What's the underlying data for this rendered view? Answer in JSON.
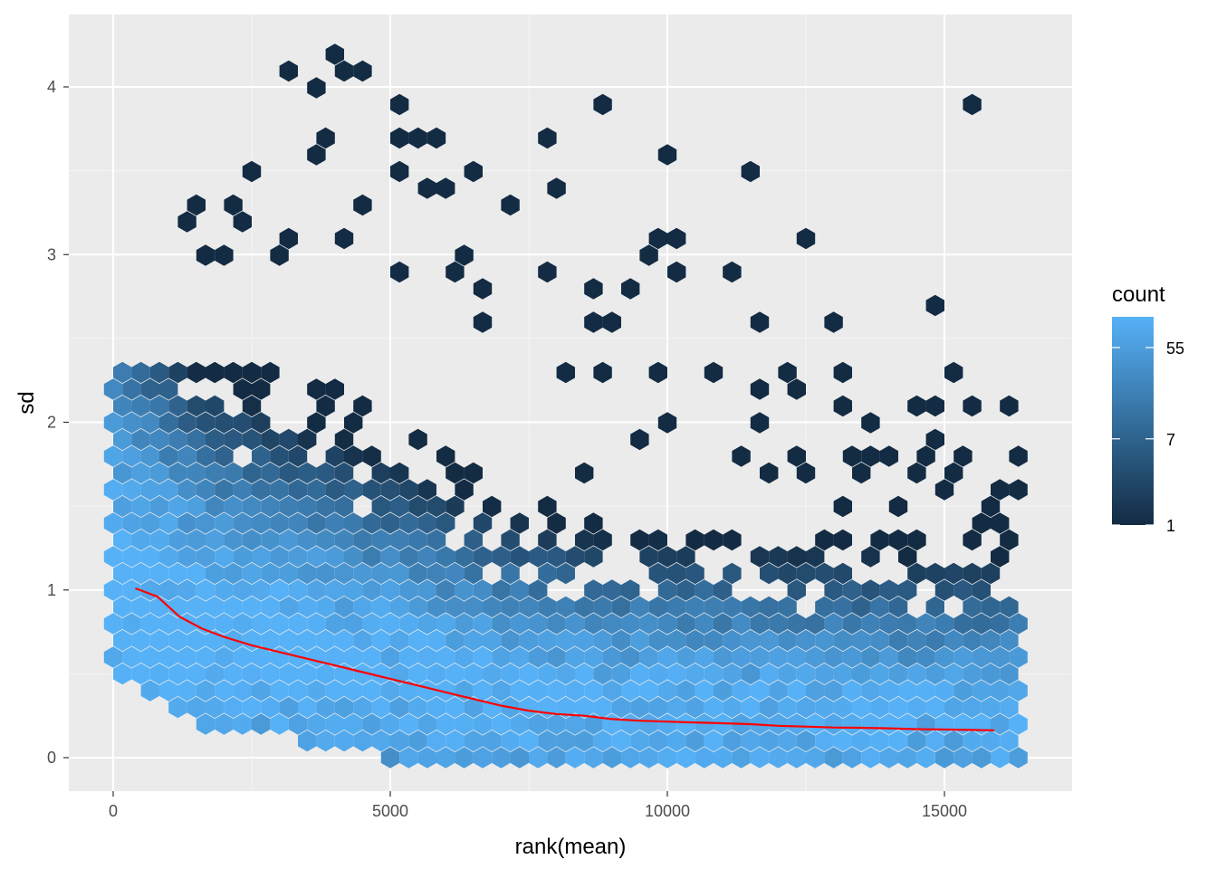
{
  "chart_data": {
    "type": "hexbin",
    "xlabel": "rank(mean)",
    "ylabel": "sd",
    "xlim": [
      -800,
      17400
    ],
    "ylim": [
      -0.2,
      4.4
    ],
    "x_ticks": [
      0,
      5000,
      10000,
      15000
    ],
    "x_tick_labels": [
      "0",
      "5000",
      "10000",
      "15000"
    ],
    "y_ticks": [
      0,
      1,
      2,
      3,
      4
    ],
    "y_tick_labels": [
      "0",
      "1",
      "2",
      "3",
      "4"
    ],
    "grid": true,
    "legend": {
      "title": "count",
      "position": "right",
      "scale": "log",
      "breaks": [
        1,
        7,
        55
      ],
      "labels": [
        "1",
        "7",
        "55"
      ],
      "min": 1,
      "max": 110,
      "low_color": "#132b43",
      "high_color": "#56b1f7"
    },
    "trend_line": {
      "color": "#ff0000",
      "x": [
        400,
        800,
        1200,
        1600,
        2000,
        2500,
        3000,
        3500,
        4000,
        4500,
        5000,
        5500,
        6000,
        6500,
        7000,
        7500,
        8000,
        8500,
        9000,
        9500,
        10000,
        10500,
        11000,
        11500,
        12000,
        12500,
        13000,
        13500,
        14000,
        14500,
        15000,
        15500,
        15900
      ],
      "y": [
        1.01,
        0.96,
        0.84,
        0.77,
        0.72,
        0.67,
        0.63,
        0.59,
        0.55,
        0.51,
        0.47,
        0.43,
        0.39,
        0.35,
        0.31,
        0.28,
        0.26,
        0.25,
        0.23,
        0.22,
        0.215,
        0.21,
        0.205,
        0.2,
        0.19,
        0.185,
        0.18,
        0.178,
        0.175,
        0.17,
        0.168,
        0.165,
        0.163
      ]
    },
    "sparse_outliers": [
      [
        3900,
        4.23
      ],
      [
        3270,
        4.08
      ],
      [
        4100,
        4.08
      ],
      [
        4520,
        4.08
      ],
      [
        3750,
        4.01
      ],
      [
        15600,
        3.93
      ],
      [
        5060,
        3.86
      ],
      [
        8700,
        3.86
      ],
      [
        3750,
        3.72
      ],
      [
        5790,
        3.72
      ],
      [
        7700,
        3.72
      ],
      [
        5170,
        3.65
      ],
      [
        5500,
        3.65
      ],
      [
        3750,
        3.57
      ],
      [
        10000,
        3.57
      ],
      [
        2600,
        3.5
      ],
      [
        5170,
        3.5
      ],
      [
        6420,
        3.5
      ],
      [
        11430,
        3.5
      ],
      [
        6000,
        3.43
      ],
      [
        8100,
        3.43
      ],
      [
        5500,
        3.36
      ],
      [
        1500,
        3.29
      ],
      [
        2100,
        3.29
      ],
      [
        4450,
        3.29
      ],
      [
        7300,
        3.29
      ],
      [
        1300,
        3.21
      ],
      [
        2300,
        3.21
      ],
      [
        10000,
        3.14
      ],
      [
        4100,
        3.14
      ],
      [
        9800,
        3.07
      ],
      [
        12400,
        3.07
      ],
      [
        3270,
        3.07
      ],
      [
        9600,
        3.0
      ],
      [
        6420,
        3.0
      ],
      [
        2100,
        3.0
      ],
      [
        1500,
        3.0
      ],
      [
        3150,
        3.0
      ],
      [
        10100,
        2.93
      ],
      [
        11100,
        2.93
      ],
      [
        5170,
        2.93
      ],
      [
        6250,
        2.93
      ],
      [
        7700,
        2.86
      ],
      [
        8800,
        2.77
      ],
      [
        9200,
        2.77
      ],
      [
        6580,
        2.77
      ],
      [
        11700,
        2.63
      ],
      [
        12900,
        2.55
      ],
      [
        8700,
        2.55
      ],
      [
        9100,
        2.55
      ],
      [
        6580,
        2.63
      ],
      [
        14850,
        2.7
      ],
      [
        10800,
        2.33
      ],
      [
        9800,
        2.33
      ],
      [
        8300,
        2.33
      ],
      [
        12300,
        2.26
      ],
      [
        13300,
        2.26
      ],
      [
        15200,
        2.26
      ],
      [
        8700,
        2.26
      ],
      [
        11700,
        2.19
      ],
      [
        12400,
        2.19
      ],
      [
        9900,
        2.26
      ],
      [
        14500,
        2.12
      ],
      [
        14850,
        2.12
      ],
      [
        15600,
        2.12
      ],
      [
        13100,
        2.12
      ],
      [
        13300,
        2.12
      ],
      [
        16300,
        2.05
      ],
      [
        11700,
        1.98
      ],
      [
        13600,
        1.98
      ],
      [
        10000,
        1.98
      ],
      [
        9600,
        1.9
      ],
      [
        14800,
        1.9
      ],
      [
        12300,
        1.83
      ],
      [
        11300,
        1.83
      ],
      [
        13200,
        1.83
      ],
      [
        13800,
        1.83
      ],
      [
        14000,
        1.83
      ],
      [
        14800,
        1.83
      ],
      [
        15300,
        1.83
      ],
      [
        16300,
        1.76
      ],
      [
        8600,
        1.68
      ],
      [
        11700,
        1.68
      ],
      [
        12500,
        1.68
      ],
      [
        13500,
        1.68
      ],
      [
        14500,
        1.68
      ],
      [
        15300,
        1.68
      ],
      [
        16000,
        1.61
      ],
      [
        16300,
        1.61
      ],
      [
        14900,
        1.61
      ],
      [
        13200,
        1.54
      ],
      [
        14000,
        1.54
      ],
      [
        15800,
        1.54
      ],
      [
        15500,
        1.4
      ],
      [
        16100,
        1.4
      ],
      [
        15500,
        1.26
      ],
      [
        13100,
        1.26
      ],
      [
        13700,
        1.26
      ],
      [
        14600,
        1.12
      ],
      [
        12600,
        1.12
      ],
      [
        14400,
        0.0
      ],
      [
        6420,
        0.07
      ],
      [
        7700,
        0.07
      ],
      [
        8000,
        0.07
      ],
      [
        8400,
        0.07
      ],
      [
        7000,
        0.07
      ]
    ]
  }
}
